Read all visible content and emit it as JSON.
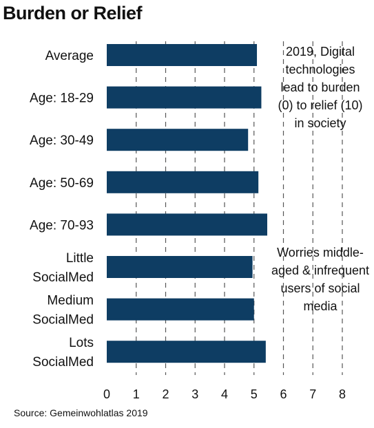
{
  "title": "Burden or Relief",
  "source": "Source: Gemeinwohlatlas 2019",
  "annotations": {
    "top": "2019, Digital technologies lead to burden (0) to relief (10) in society",
    "bottom": "Worries middle-aged & infrequent users of social media"
  },
  "colors": {
    "bar": "#0e3d63",
    "grid": "#555555",
    "text": "#111111"
  },
  "chart_data": {
    "type": "bar",
    "orientation": "horizontal",
    "title": "Burden or Relief",
    "categories": [
      "Average",
      "Age: 18-29",
      "Age: 30-49",
      "Age: 50-69",
      "Age: 70-93",
      "Little SocialMed",
      "Medium SocialMed",
      "Lots SocialMed"
    ],
    "values": [
      5.1,
      5.25,
      4.8,
      5.15,
      5.45,
      4.95,
      5.0,
      5.4
    ],
    "xlim": [
      0,
      8
    ],
    "xticks": [
      "0",
      "1",
      "2",
      "3",
      "4",
      "5",
      "6",
      "7",
      "8"
    ],
    "grid": "vertical dashed",
    "legend": "none"
  }
}
